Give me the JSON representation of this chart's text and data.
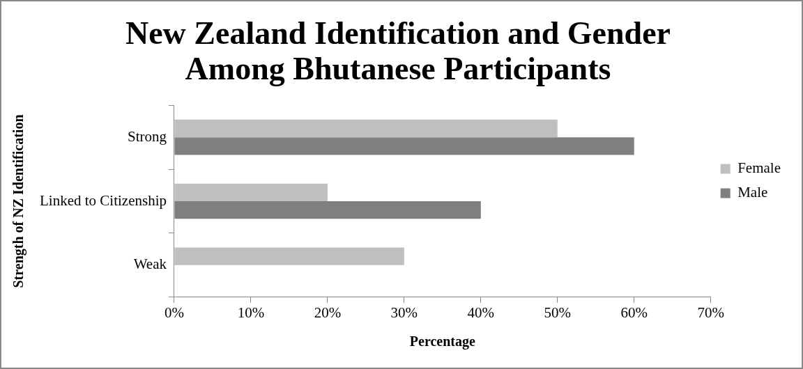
{
  "chart_data": {
    "type": "bar",
    "orientation": "horizontal",
    "title": "New Zealand Identification and Gender Among Bhutanese Participants",
    "xlabel": "Percentage",
    "ylabel": "Strength of NZ Identification",
    "categories": [
      "Strong",
      "Linked to Citizenship",
      "Weak"
    ],
    "series": [
      {
        "name": "Female",
        "color": "#bfbfbf",
        "values": [
          50,
          20,
          30
        ]
      },
      {
        "name": "Male",
        "color": "#7f7f7f",
        "values": [
          60,
          40,
          0
        ]
      }
    ],
    "xlim": [
      0,
      70
    ],
    "xticks": [
      {
        "value": 0,
        "label": "0%"
      },
      {
        "value": 10,
        "label": "10%"
      },
      {
        "value": 20,
        "label": "20%"
      },
      {
        "value": 30,
        "label": "30%"
      },
      {
        "value": 40,
        "label": "40%"
      },
      {
        "value": 50,
        "label": "50%"
      },
      {
        "value": 60,
        "label": "60%"
      },
      {
        "value": 70,
        "label": "70%"
      }
    ],
    "grid": false,
    "legend": "right"
  }
}
